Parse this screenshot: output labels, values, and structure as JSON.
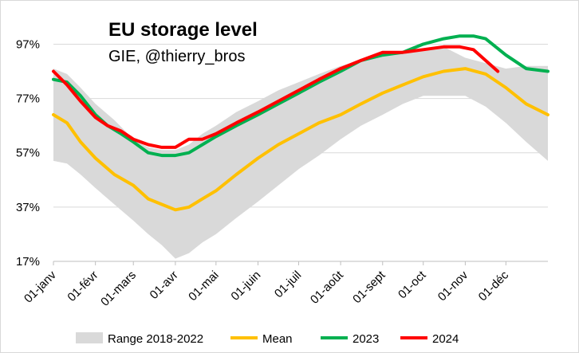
{
  "chart_data": {
    "type": "line",
    "title": "EU storage level",
    "subtitle": "GIE, @thierry_bros",
    "xlabel": "",
    "ylabel": "",
    "x_tick_labels": [
      "01-janv",
      "01-févr",
      "01-mars",
      "01-avr",
      "01-mai",
      "01-juin",
      "01-juil",
      "01-août",
      "01-sept",
      "01-oct",
      "01-nov",
      "01-déc"
    ],
    "x_tick_days": [
      0,
      31,
      59,
      90,
      120,
      151,
      181,
      212,
      243,
      273,
      304,
      334
    ],
    "xlim_days": [
      0,
      365
    ],
    "y_tick_labels": [
      "17%",
      "37%",
      "57%",
      "77%",
      "97%"
    ],
    "y_tick_values": [
      17,
      37,
      57,
      77,
      97
    ],
    "ylim": [
      17,
      103
    ],
    "grid": "horizontal",
    "legend_position": "bottom",
    "band": {
      "name": "Range 2018-2022",
      "color": "#d9d9d9",
      "x_days": [
        0,
        10,
        20,
        31,
        45,
        59,
        70,
        80,
        90,
        100,
        110,
        120,
        135,
        151,
        166,
        181,
        196,
        212,
        227,
        243,
        258,
        273,
        288,
        304,
        319,
        334,
        349,
        365
      ],
      "low": [
        54,
        53,
        49,
        44,
        38,
        32,
        27,
        23,
        18,
        20,
        24,
        27,
        33,
        39,
        45,
        51,
        56,
        62,
        67,
        71,
        75,
        78,
        78,
        78,
        74,
        68,
        61,
        54
      ],
      "high": [
        88,
        86,
        81,
        75,
        69,
        62,
        59,
        58,
        58,
        60,
        64,
        67,
        72,
        76,
        80,
        83,
        86,
        89,
        91,
        93,
        94,
        95,
        96,
        92,
        90,
        88,
        89,
        89
      ]
    },
    "series": [
      {
        "name": "Mean",
        "color": "#ffc000",
        "x_days": [
          0,
          10,
          20,
          31,
          45,
          59,
          70,
          80,
          90,
          100,
          110,
          120,
          135,
          151,
          166,
          181,
          196,
          212,
          227,
          243,
          258,
          273,
          288,
          304,
          319,
          334,
          349,
          365
        ],
        "values": [
          71,
          68,
          61,
          55,
          49,
          45,
          40,
          38,
          36,
          37,
          40,
          43,
          49,
          55,
          60,
          64,
          68,
          71,
          75,
          79,
          82,
          85,
          87,
          88,
          86,
          81,
          75,
          71
        ]
      },
      {
        "name": "2023",
        "color": "#00b050",
        "x_days": [
          0,
          10,
          20,
          31,
          40,
          50,
          59,
          70,
          80,
          90,
          100,
          110,
          120,
          135,
          151,
          166,
          181,
          196,
          212,
          227,
          243,
          258,
          273,
          288,
          300,
          310,
          319,
          334,
          349,
          365
        ],
        "values": [
          84,
          83,
          78,
          71,
          67,
          64,
          61,
          57,
          56,
          56,
          57,
          60,
          63,
          67,
          71,
          75,
          79,
          83,
          87,
          91,
          93,
          94,
          97,
          99,
          100,
          100,
          99,
          93,
          88,
          87
        ]
      },
      {
        "name": "2024",
        "color": "#ff0000",
        "x_days": [
          0,
          10,
          20,
          31,
          40,
          50,
          59,
          70,
          80,
          90,
          100,
          110,
          120,
          135,
          151,
          166,
          181,
          196,
          212,
          227,
          243,
          258,
          273,
          288,
          300,
          310,
          319,
          328
        ],
        "values": [
          87,
          82,
          76,
          70,
          67,
          65,
          62,
          60,
          59,
          59,
          62,
          62,
          64,
          68,
          72,
          76,
          80,
          84,
          88,
          91,
          94,
          94,
          95,
          96,
          96,
          95,
          91,
          87
        ]
      }
    ],
    "legend": [
      "Range 2018-2022",
      "Mean",
      "2023",
      "2024"
    ]
  }
}
